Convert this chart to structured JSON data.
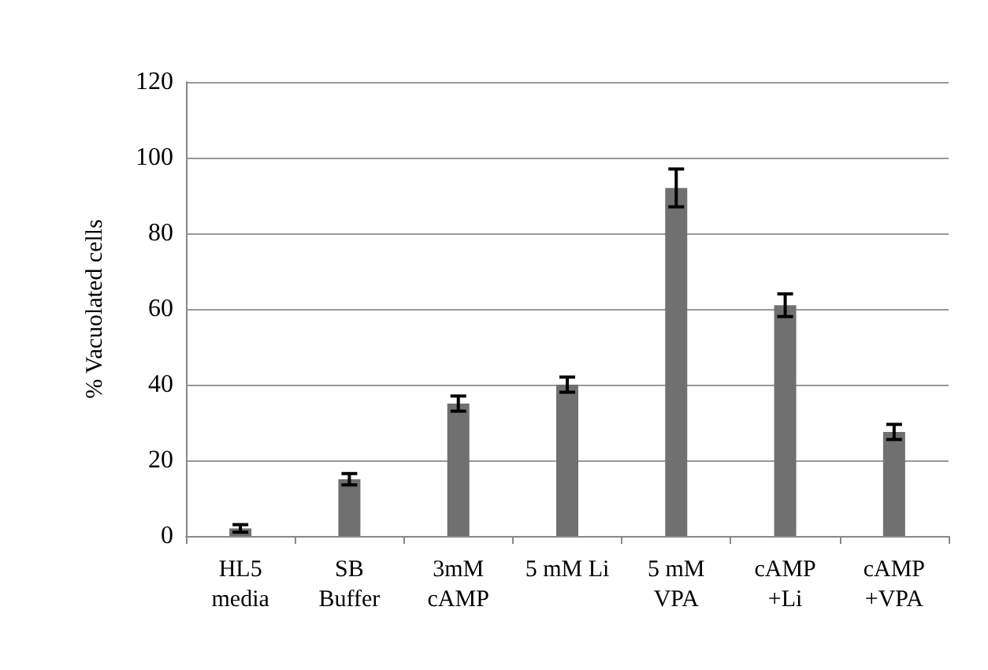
{
  "chart_data": {
    "type": "bar",
    "ylabel": "% Vacuolated cells",
    "categories": [
      "HL5\nmedia",
      "SB\nBuffer",
      "3mM\ncAMP",
      "5 mM Li",
      "5 mM\nVPA",
      "cAMP\n+Li",
      "cAMP\n+VPA"
    ],
    "values": [
      2,
      15,
      35,
      40,
      92,
      61,
      27.5
    ],
    "errors": [
      1,
      1.5,
      2,
      2,
      5,
      3,
      2
    ],
    "color": "#707070",
    "ylim": [
      0,
      120
    ],
    "yticks": [
      0,
      20,
      40,
      60,
      80,
      100,
      120
    ],
    "grid": "y"
  }
}
